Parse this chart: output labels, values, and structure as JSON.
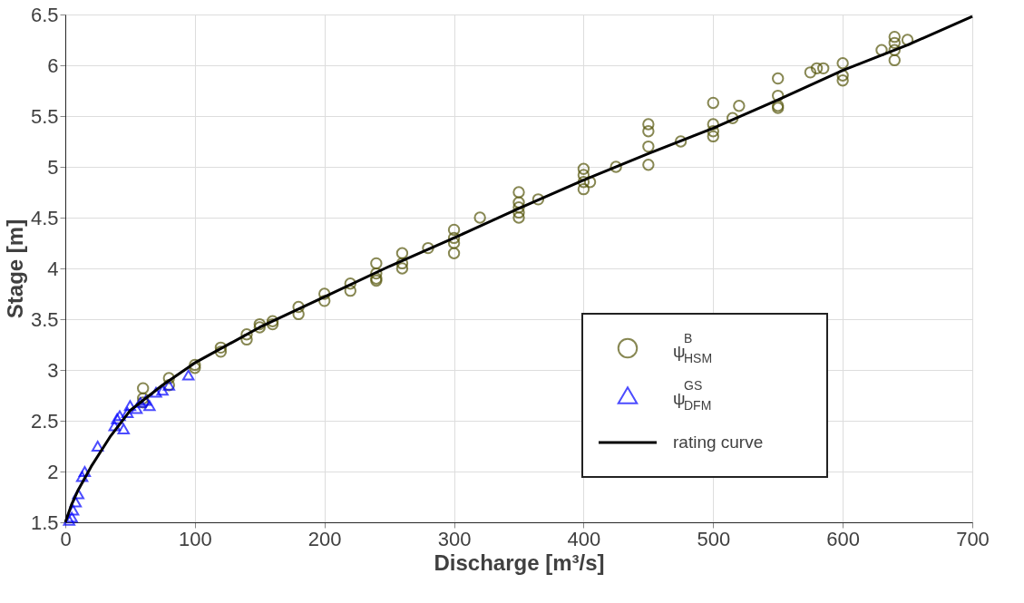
{
  "chart_data": {
    "type": "scatter",
    "xlabel": "Discharge [m³/s]",
    "ylabel": "Stage [m]",
    "xlim": [
      0,
      700
    ],
    "ylim": [
      1.5,
      6.5
    ],
    "xticks": [
      0,
      100,
      200,
      300,
      400,
      500,
      600,
      700
    ],
    "yticks": [
      1.5,
      2,
      2.5,
      3,
      3.5,
      4,
      4.5,
      5,
      5.5,
      6,
      6.5
    ],
    "grid": true,
    "legend": "bottom right",
    "series": [
      {
        "name": "ψ$^{B}$$_{HSM}$",
        "type": "scatter",
        "marker": "circle",
        "color": "#55550a",
        "x": [
          60,
          60,
          60,
          80,
          80,
          100,
          100,
          120,
          120,
          140,
          140,
          150,
          150,
          160,
          160,
          180,
          180,
          200,
          200,
          220,
          220,
          240,
          240,
          240,
          240,
          260,
          260,
          260,
          280,
          300,
          300,
          300,
          300,
          320,
          350,
          350,
          350,
          350,
          350,
          365,
          400,
          400,
          400,
          400,
          405,
          425,
          450,
          450,
          450,
          450,
          475,
          500,
          500,
          500,
          500,
          515,
          520,
          550,
          550,
          550,
          550,
          575,
          580,
          585,
          600,
          600,
          600,
          630,
          640,
          640,
          640,
          640,
          650
        ],
        "values": [
          2.82,
          2.72,
          2.68,
          2.92,
          2.85,
          3.05,
          3.02,
          3.22,
          3.18,
          3.35,
          3.3,
          3.45,
          3.42,
          3.48,
          3.45,
          3.62,
          3.55,
          3.75,
          3.68,
          3.85,
          3.78,
          4.05,
          3.95,
          3.9,
          3.88,
          4.15,
          4.05,
          4.0,
          4.2,
          4.38,
          4.3,
          4.25,
          4.15,
          4.5,
          4.75,
          4.65,
          4.6,
          4.55,
          4.5,
          4.68,
          4.98,
          4.92,
          4.85,
          4.78,
          4.85,
          5.0,
          5.42,
          5.35,
          5.2,
          5.02,
          5.25,
          5.63,
          5.42,
          5.35,
          5.3,
          5.48,
          5.6,
          5.87,
          5.7,
          5.6,
          5.58,
          5.93,
          5.97,
          5.97,
          6.02,
          5.9,
          5.85,
          6.15,
          6.28,
          6.22,
          6.15,
          6.05,
          6.25
        ]
      },
      {
        "name": "ψ$^{GS}$$_{DFM}$",
        "type": "scatter",
        "marker": "triangle",
        "color": "#0000ff",
        "x": [
          3,
          5,
          6,
          8,
          10,
          13,
          15,
          25,
          38,
          40,
          42,
          45,
          48,
          50,
          55,
          58,
          62,
          65,
          70,
          75,
          80,
          95
        ],
        "values": [
          1.52,
          1.55,
          1.62,
          1.7,
          1.78,
          1.95,
          2.0,
          2.25,
          2.45,
          2.52,
          2.55,
          2.42,
          2.58,
          2.65,
          2.62,
          2.68,
          2.7,
          2.65,
          2.78,
          2.8,
          2.85,
          2.95
        ]
      },
      {
        "name": "rating curve",
        "type": "line",
        "line_style": "solid",
        "color": "#000000",
        "x": [
          0,
          5,
          10,
          20,
          35,
          50,
          75,
          100,
          150,
          200,
          250,
          300,
          350,
          400,
          450,
          500,
          550,
          600,
          650,
          700
        ],
        "values": [
          1.5,
          1.68,
          1.82,
          2.05,
          2.35,
          2.6,
          2.85,
          3.07,
          3.42,
          3.72,
          4.02,
          4.3,
          4.59,
          4.87,
          5.13,
          5.38,
          5.66,
          5.95,
          6.2,
          6.48
        ]
      }
    ]
  }
}
